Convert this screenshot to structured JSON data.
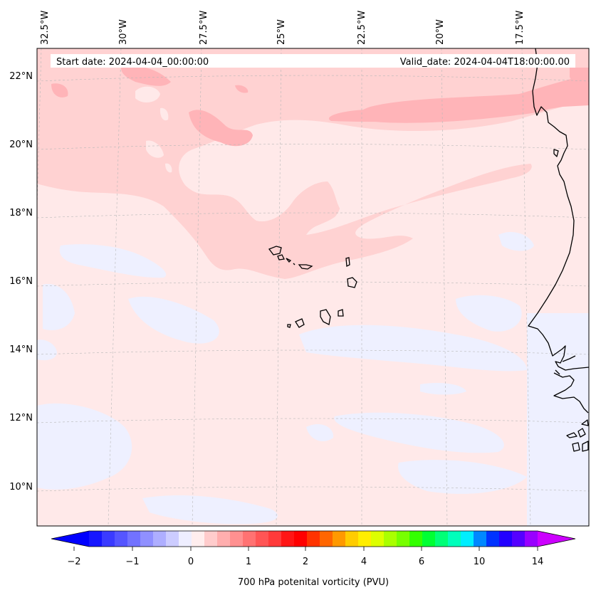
{
  "map": {
    "header": {
      "start_date": "Start date: 2024-04-04_00:00:00",
      "valid_date": "Valid_date: 2024-04-04T18:00:00.00"
    },
    "lon_labels": [
      "32.5°W",
      "30°W",
      "27.5°W",
      "25°W",
      "22.5°W",
      "20°W",
      "17.5°W"
    ],
    "lat_labels": [
      "22°N",
      "20°N",
      "18°N",
      "16°N",
      "14°N",
      "12°N",
      "10°N"
    ],
    "colors": {
      "background_field": "#ffe9e9",
      "light_blue_field": "#eef0ff",
      "pink_band": "#ffd2d2",
      "dark_pink_band": "#ffb4b8",
      "coast": "#000000"
    }
  },
  "colorbar": {
    "label": "700 hPa potenital vorticity (PVU)",
    "ticks": [
      "−2",
      "−1",
      "0",
      "1",
      "2",
      "4",
      "6",
      "10",
      "14"
    ],
    "under_color": "#0000ff",
    "over_color": "#cc00ff",
    "colors": [
      "#1616ff",
      "#3a3aff",
      "#5555ff",
      "#7272ff",
      "#9090ff",
      "#aeaeff",
      "#ccccff",
      "#eeeeff",
      "#ffeeee",
      "#ffcccc",
      "#ffaeae",
      "#ff9090",
      "#ff7272",
      "#ff5555",
      "#ff3a3a",
      "#ff1616",
      "#ff0000",
      "#ff3300",
      "#ff6600",
      "#ff9900",
      "#ffcc00",
      "#ffee00",
      "#ddff00",
      "#aaff00",
      "#77ff00",
      "#33ff00",
      "#00ff33",
      "#00ff77",
      "#00ffbb",
      "#00eeff",
      "#0088ff",
      "#0033ff",
      "#2200ff",
      "#5500ff",
      "#9900ff"
    ]
  }
}
